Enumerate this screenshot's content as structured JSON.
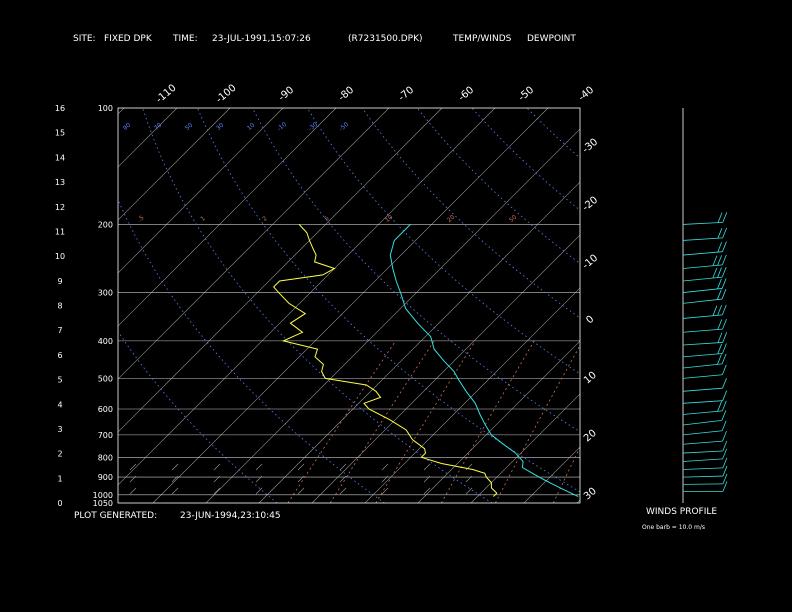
{
  "header": {
    "site_label": "SITE:",
    "site_value": "FIXED DPK",
    "time_label": "TIME:",
    "time_value": "23-JUL-1991,15:07:26",
    "file": "(R7231500.DPK)",
    "legend_temp": "TEMP/WINDS",
    "legend_dew": "DEWPOINT"
  },
  "footer": {
    "plot_generated_label": "PLOT GENERATED:",
    "plot_generated_value": "23-JUN-1994,23:10:45"
  },
  "winds_panel": {
    "title": "WINDS PROFILE",
    "note": "One barb = 10.0 m/s"
  },
  "colors": {
    "temp": "#33e0e0",
    "dewpoint": "#ffff44",
    "isotherm": "#9a9a9a",
    "dry_adiabat": "#5a80ff",
    "mixing_ratio": "#c87050",
    "text": "#ffffff"
  },
  "chart_data": {
    "type": "line",
    "title": "",
    "pressure_labels": [
      "100",
      "200",
      "300",
      "400",
      "500",
      "600",
      "700",
      "800",
      "900",
      "1000",
      "1050"
    ],
    "height_labels": [
      "0",
      "1",
      "2",
      "3",
      "4",
      "5",
      "6",
      "7",
      "8",
      "9",
      "10",
      "11",
      "12",
      "13",
      "14",
      "15",
      "16"
    ],
    "top_temp_labels": [
      "-110",
      "-100",
      "-90",
      "-80",
      "-70",
      "-60",
      "-50",
      "-40"
    ],
    "right_temp_labels": [
      "-30",
      "-20",
      "-10",
      "0",
      "10",
      "20",
      "30"
    ],
    "mixing_ratio_labels": [
      ".5",
      "1",
      "2",
      "5",
      "10",
      "20",
      "50"
    ],
    "adiabat_labels": [
      "90",
      "70",
      "50",
      "30",
      "10",
      "-10",
      "-30",
      "-50"
    ],
    "isotherm_interval": 10,
    "pressure_range": [
      1050,
      100
    ],
    "series": [
      {
        "name": "TEMP/WINDS",
        "points": [
          [
            200,
            -54
          ],
          [
            220,
            -54
          ],
          [
            240,
            -52
          ],
          [
            260,
            -49
          ],
          [
            280,
            -46
          ],
          [
            300,
            -43
          ],
          [
            330,
            -39
          ],
          [
            360,
            -34
          ],
          [
            390,
            -29
          ],
          [
            420,
            -26
          ],
          [
            450,
            -22
          ],
          [
            480,
            -18
          ],
          [
            500,
            -16
          ],
          [
            540,
            -12
          ],
          [
            580,
            -8
          ],
          [
            620,
            -5
          ],
          [
            660,
            -2
          ],
          [
            700,
            1
          ],
          [
            740,
            5
          ],
          [
            780,
            9
          ],
          [
            820,
            12
          ],
          [
            850,
            13
          ],
          [
            880,
            16
          ],
          [
            910,
            19
          ],
          [
            940,
            22
          ],
          [
            970,
            25
          ],
          [
            1000,
            28
          ],
          [
            1010,
            29
          ]
        ]
      },
      {
        "name": "DEWPOINT",
        "points": [
          [
            200,
            -75
          ],
          [
            210,
            -72
          ],
          [
            220,
            -70
          ],
          [
            230,
            -68
          ],
          [
            240,
            -66
          ],
          [
            250,
            -65
          ],
          [
            260,
            -60
          ],
          [
            270,
            -61
          ],
          [
            280,
            -68
          ],
          [
            290,
            -68
          ],
          [
            300,
            -66
          ],
          [
            320,
            -62
          ],
          [
            340,
            -57
          ],
          [
            360,
            -58
          ],
          [
            380,
            -54
          ],
          [
            400,
            -56
          ],
          [
            420,
            -48
          ],
          [
            440,
            -47
          ],
          [
            460,
            -44
          ],
          [
            480,
            -43
          ],
          [
            500,
            -41
          ],
          [
            520,
            -32
          ],
          [
            540,
            -29
          ],
          [
            560,
            -27
          ],
          [
            580,
            -29
          ],
          [
            600,
            -27
          ],
          [
            640,
            -21
          ],
          [
            680,
            -16
          ],
          [
            720,
            -13
          ],
          [
            760,
            -9
          ],
          [
            780,
            -8
          ],
          [
            800,
            -8
          ],
          [
            830,
            -3
          ],
          [
            860,
            4
          ],
          [
            880,
            7
          ],
          [
            900,
            8
          ],
          [
            930,
            10
          ],
          [
            960,
            11
          ],
          [
            990,
            13
          ],
          [
            1010,
            13
          ]
        ]
      }
    ],
    "wind_barbs": [
      [
        200,
        220,
        15
      ],
      [
        220,
        230,
        20
      ],
      [
        240,
        245,
        20
      ],
      [
        260,
        250,
        25
      ],
      [
        280,
        255,
        25
      ],
      [
        300,
        260,
        20
      ],
      [
        320,
        265,
        20
      ],
      [
        350,
        250,
        25
      ],
      [
        380,
        240,
        20
      ],
      [
        410,
        230,
        15
      ],
      [
        440,
        245,
        15
      ],
      [
        470,
        260,
        15
      ],
      [
        500,
        250,
        10
      ],
      [
        540,
        240,
        10
      ],
      [
        580,
        230,
        10
      ],
      [
        620,
        250,
        15
      ],
      [
        660,
        270,
        10
      ],
      [
        700,
        260,
        10
      ],
      [
        740,
        240,
        10
      ],
      [
        780,
        220,
        10
      ],
      [
        820,
        230,
        5
      ],
      [
        860,
        210,
        5
      ],
      [
        900,
        200,
        5
      ],
      [
        940,
        190,
        5
      ],
      [
        980,
        180,
        5
      ]
    ]
  }
}
